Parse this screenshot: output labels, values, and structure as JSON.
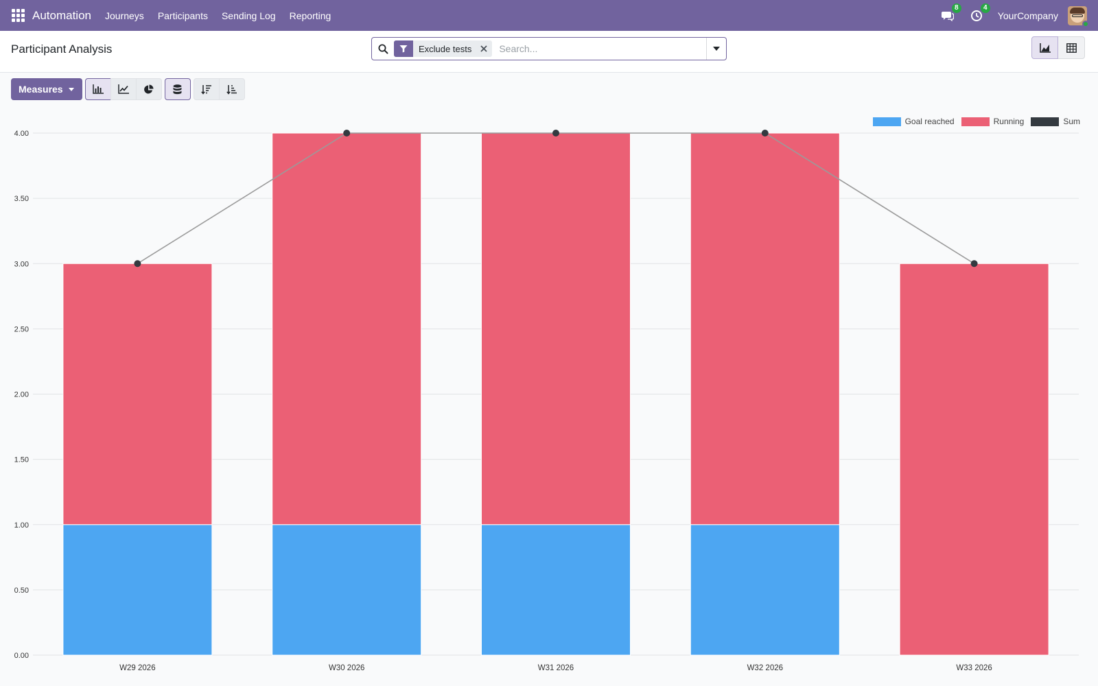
{
  "navbar": {
    "brand": "Automation",
    "items": [
      "Journeys",
      "Participants",
      "Sending Log",
      "Reporting"
    ],
    "messages_badge": "8",
    "activities_badge": "4",
    "company": "YourCompany"
  },
  "control": {
    "title": "Participant Analysis",
    "facet_label": "Exclude tests",
    "search_placeholder": "Search..."
  },
  "toolbar": {
    "measures_label": "Measures"
  },
  "colors": {
    "goal_reached": "#4da6f2",
    "running": "#eb6075",
    "sum": "#343a40",
    "brand": "#71639e"
  },
  "chart_data": {
    "type": "bar",
    "stacked": true,
    "categories": [
      "W29 2026",
      "W30 2026",
      "W31 2026",
      "W32 2026",
      "W33 2026"
    ],
    "series": [
      {
        "name": "Goal reached",
        "values": [
          1,
          1,
          1,
          1,
          0
        ]
      },
      {
        "name": "Running",
        "values": [
          2,
          3,
          3,
          3,
          3
        ]
      },
      {
        "name": "Sum",
        "type": "line",
        "values": [
          3,
          4,
          4,
          4,
          3
        ]
      }
    ],
    "ylim": [
      0,
      4
    ],
    "yticks": [
      "0.00",
      "0.50",
      "1.00",
      "1.50",
      "2.00",
      "2.50",
      "3.00",
      "3.50",
      "4.00"
    ],
    "ytick_values": [
      0,
      0.5,
      1,
      1.5,
      2,
      2.5,
      3,
      3.5,
      4
    ],
    "legend_position": "top-right",
    "grid": true
  }
}
